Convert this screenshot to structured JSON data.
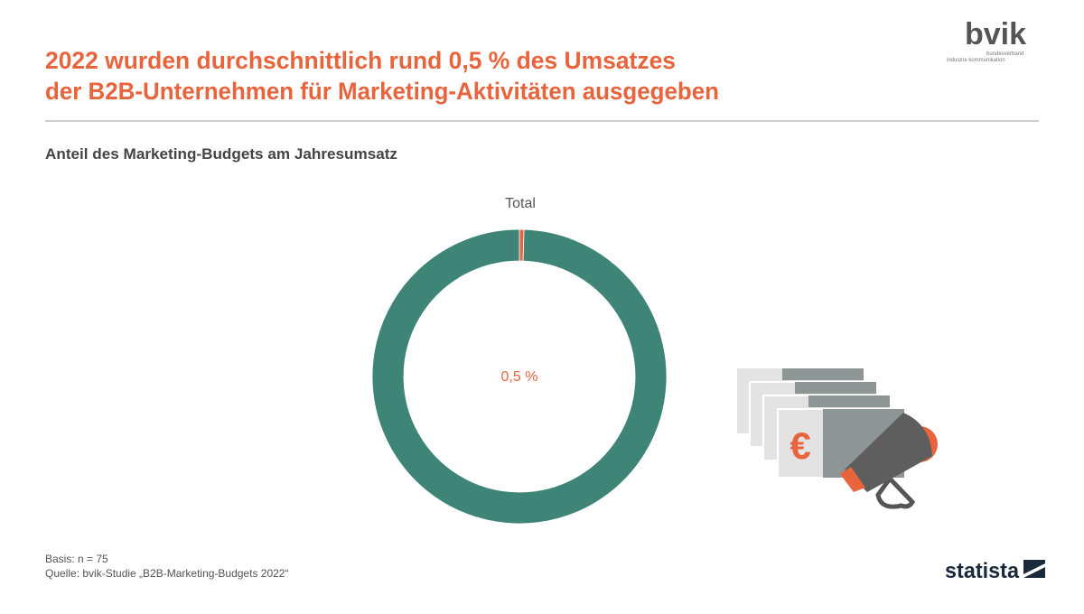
{
  "chart_data": {
    "type": "donut",
    "title": [
      "2022 wurden durchschnittlich rund 0,5 % des Umsatzes",
      "der B2B-Unternehmen für Marketing-Aktivitäten ausgegeben"
    ],
    "subtitle": "Anteil des Marketing-Budgets am Jahresumsatz",
    "label": "Total",
    "categories": [
      null,
      null
    ],
    "values": [
      0.5,
      99.5
    ],
    "value_labels": [
      "0,5 %",
      null
    ],
    "colors": [
      "#e8643c",
      "#3e8578"
    ],
    "notes": [
      "Basis: n = 75",
      "Quelle: bvik-Studie „B2B-Marketing-Budgets 2022“"
    ]
  },
  "logos": {
    "bvik": "bvik",
    "bvik_tagline": [
      "bundesverband",
      "industrie kommunikation"
    ],
    "statista": "statista"
  }
}
